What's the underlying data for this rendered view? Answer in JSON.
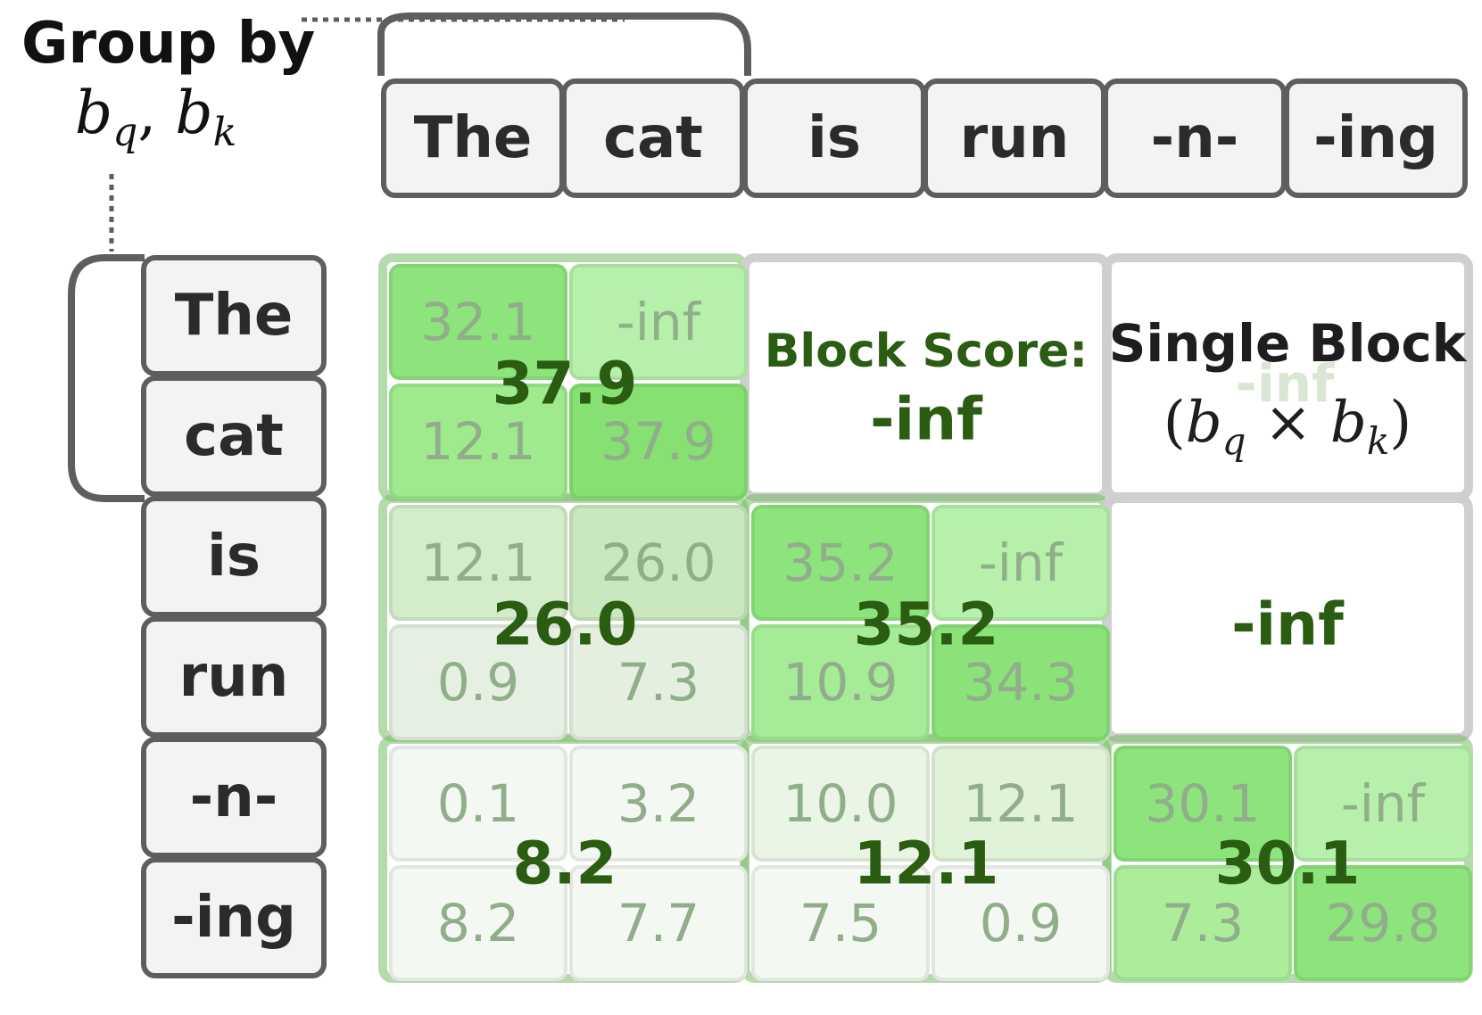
{
  "title": {
    "line1": "Group by",
    "math_bq_base": "b",
    "math_bq_sub": "q",
    "math_sep": ",",
    "math_bk_base": "b",
    "math_bk_sub": "k"
  },
  "col_tokens": [
    "The",
    "cat",
    "is",
    "run",
    "-n-",
    "-ing"
  ],
  "row_tokens": [
    "The",
    "cat",
    "is",
    "run",
    "-n-",
    "-ing"
  ],
  "cells": [
    [
      "32.1",
      "-inf",
      "",
      "",
      "",
      ""
    ],
    [
      "12.1",
      "37.9",
      "",
      "",
      "",
      ""
    ],
    [
      "12.1",
      "26.0",
      "35.2",
      "-inf",
      "",
      ""
    ],
    [
      "0.9",
      "7.3",
      "10.9",
      "34.3",
      "",
      ""
    ],
    [
      "0.1",
      "3.2",
      "10.0",
      "12.1",
      "30.1",
      "-inf"
    ],
    [
      "8.2",
      "7.7",
      "7.5",
      "0.9",
      "7.3",
      "29.8"
    ]
  ],
  "blocks": {
    "b00_score": "37.9",
    "b10_score": "26.0",
    "b11_score": "35.2",
    "b20_score": "8.2",
    "b21_score": "12.1",
    "b22_score": "30.1",
    "b01_label": "Block Score:",
    "b01_score": "-inf",
    "b02_label": "Single Block",
    "b02_ghost": "-inf",
    "b02_math_open": "(",
    "b02_math_bq": "b",
    "b02_math_q": "q",
    "b02_math_times": "×",
    "b02_math_bk": "b",
    "b02_math_k": "k",
    "b02_math_close": ")",
    "b12_score": "-inf"
  },
  "colors": {
    "token_border": "#5e5e5e",
    "token_fill": "#f3f3f3",
    "score_text": "#2a5d12",
    "cell_text": "#8fae89",
    "masked_border": "#cfcfcf",
    "bracket": "#5e5e5e"
  }
}
